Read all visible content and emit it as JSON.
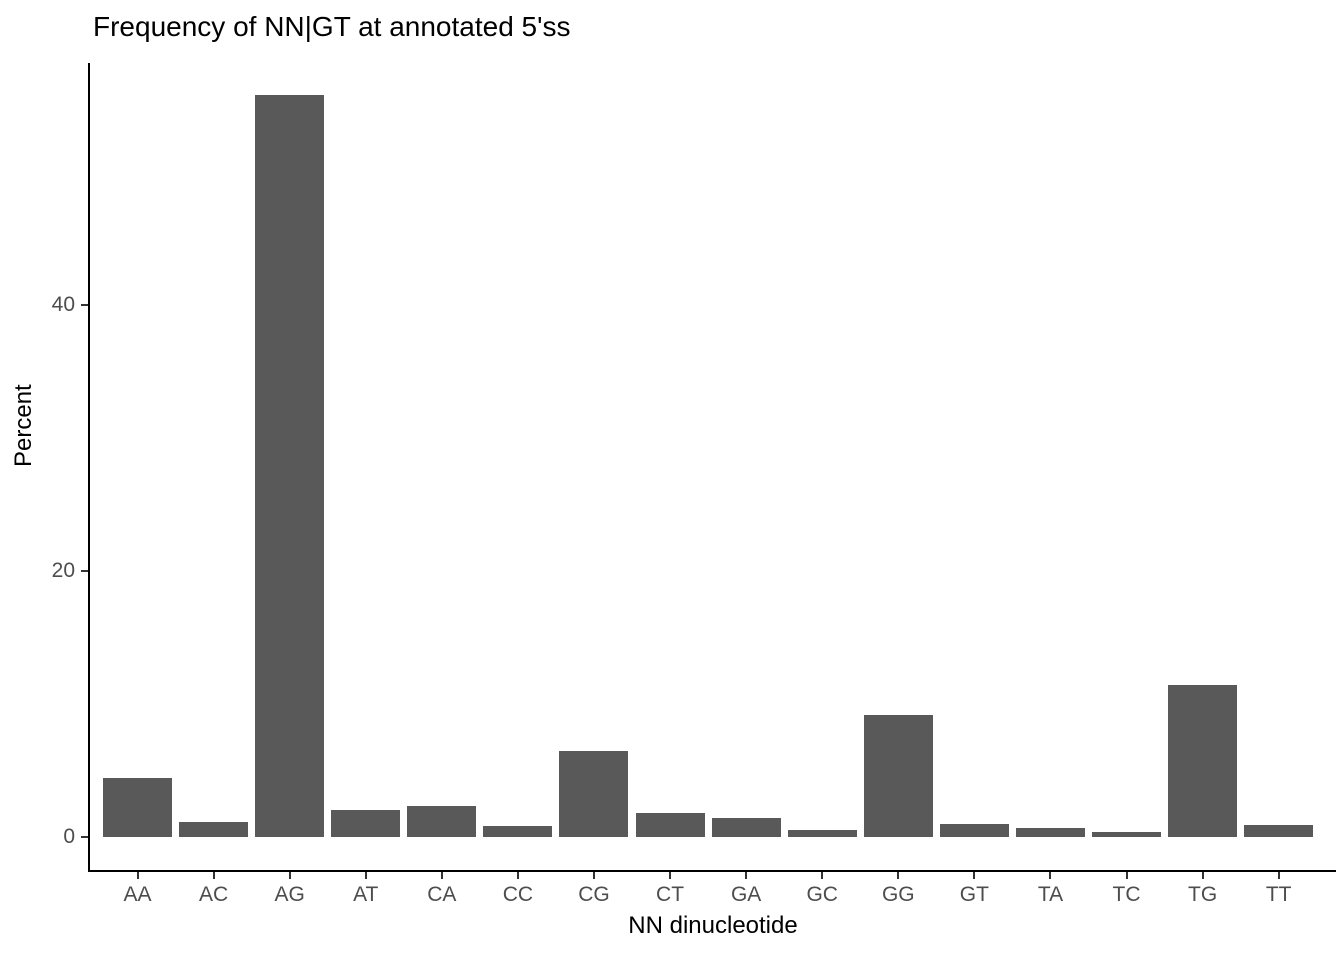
{
  "chart_data": {
    "type": "bar",
    "title": "Frequency of NN|GT at annotated 5'ss",
    "xlabel": "NN dinucleotide",
    "ylabel": "Percent",
    "categories": [
      "AA",
      "AC",
      "AG",
      "AT",
      "CA",
      "CC",
      "CG",
      "CT",
      "GA",
      "GC",
      "GG",
      "GT",
      "TA",
      "TC",
      "TG",
      "TT"
    ],
    "values": [
      4.4,
      1.1,
      55.8,
      2.0,
      2.3,
      0.8,
      6.5,
      1.8,
      1.4,
      0.5,
      9.2,
      1.0,
      0.7,
      0.4,
      11.4,
      0.9
    ],
    "yticks": [
      0,
      20,
      40
    ],
    "ylim": [
      0,
      58
    ],
    "grid": false,
    "legend": false,
    "bar_color": "#595959",
    "axis_color": "#000000",
    "tick_color": "#333333",
    "tick_label_color": "#4d4d4d",
    "title_color": "#000000"
  }
}
